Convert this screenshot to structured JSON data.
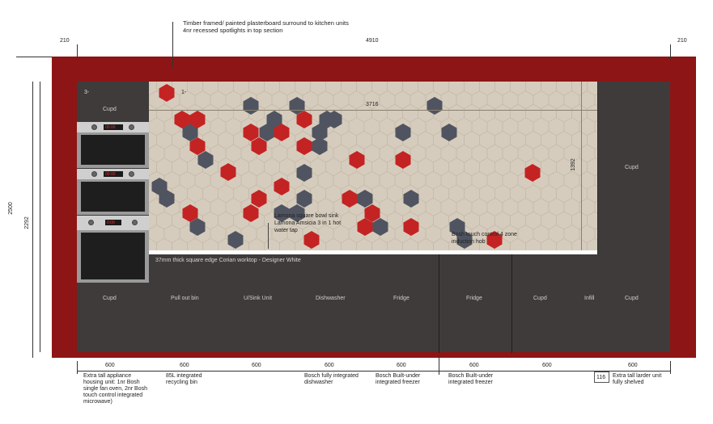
{
  "notes": {
    "surround_line1": "Timber framed/ painted plasterboard surround to kitchen units",
    "surround_line2": "4nr recessed spotlights in top section",
    "worktop": "37mm thick square edge Corian worktop - Designer White",
    "sink_line1": "Lamona square bowl sink",
    "sink_line2": "Lamona Amsicia 3 in 1 hot",
    "sink_line3": "water tap",
    "hob_line1": "Bosh touch control 4 zone",
    "hob_line2": "induction hob"
  },
  "dims": {
    "left_surround": "210",
    "total_width": "4910",
    "right_surround": "210",
    "overall_height": "2500",
    "unit_height": "2292",
    "splash_width": "3716",
    "splash_height": "1392",
    "infill_width": "116",
    "top_left_marker": "3-",
    "splash_marker": "1-"
  },
  "cabinets_top": {
    "left_cupd": "Cupd",
    "right_cupd": "Cupd"
  },
  "units": [
    {
      "label": "Cupd",
      "width": "600",
      "desc": "Extra tall appliance housing unit: 1nr Bosh single fan oven, 2nr Bosh touch control integrated microwave)"
    },
    {
      "label": "Pull out bin",
      "width": "600",
      "desc": "85L integrated recycling bin"
    },
    {
      "label": "U/Sink Unit",
      "width": "600",
      "desc": ""
    },
    {
      "label": "Dishwasher",
      "width": "600",
      "desc": "Bosch fully integrated dishwasher"
    },
    {
      "label": "Fridge",
      "width": "600",
      "desc": "Bosch Built-under integrated freezer"
    },
    {
      "label": "Fridge",
      "width": "600",
      "desc": "Bosch Built-under integrated freezer"
    },
    {
      "label": "Cupd",
      "width": "600",
      "desc": ""
    },
    {
      "label": "Infill",
      "width": "",
      "desc": ""
    },
    {
      "label": "Cupd",
      "width": "600",
      "desc": "Extra tall larder unit fully shelved"
    }
  ],
  "colors": {
    "surround": "#8e1515",
    "cabinets": "#3e3b3a",
    "tile": "#d6ccbd",
    "tile_red": "#c42323",
    "tile_grey": "#4f5460"
  },
  "tiles": {
    "red": [
      [
        206,
        115
      ],
      [
        225,
        148
      ],
      [
        244,
        148
      ],
      [
        244,
        181
      ],
      [
        282,
        213
      ],
      [
        235,
        264
      ],
      [
        310,
        164
      ],
      [
        320,
        181
      ],
      [
        348,
        164
      ],
      [
        376,
        148
      ],
      [
        376,
        181
      ],
      [
        441,
        198
      ],
      [
        498,
        198
      ],
      [
        348,
        231
      ],
      [
        320,
        246
      ],
      [
        310,
        264
      ],
      [
        432,
        246
      ],
      [
        460,
        264
      ],
      [
        451,
        281
      ],
      [
        508,
        281
      ],
      [
        385,
        297
      ],
      [
        611,
        297
      ],
      [
        658,
        214
      ]
    ],
    "grey": [
      [
        310,
        131
      ],
      [
        367,
        131
      ],
      [
        537,
        131
      ],
      [
        235,
        164
      ],
      [
        330,
        164
      ],
      [
        339,
        148
      ],
      [
        395,
        164
      ],
      [
        404,
        148
      ],
      [
        413,
        148
      ],
      [
        395,
        181
      ],
      [
        498,
        164
      ],
      [
        555,
        164
      ],
      [
        254,
        198
      ],
      [
        376,
        214
      ],
      [
        197,
        231
      ],
      [
        206,
        246
      ],
      [
        244,
        281
      ],
      [
        376,
        246
      ],
      [
        348,
        264
      ],
      [
        367,
        264
      ],
      [
        451,
        246
      ],
      [
        470,
        281
      ],
      [
        508,
        246
      ],
      [
        291,
        297
      ],
      [
        565,
        281
      ],
      [
        574,
        297
      ]
    ]
  }
}
